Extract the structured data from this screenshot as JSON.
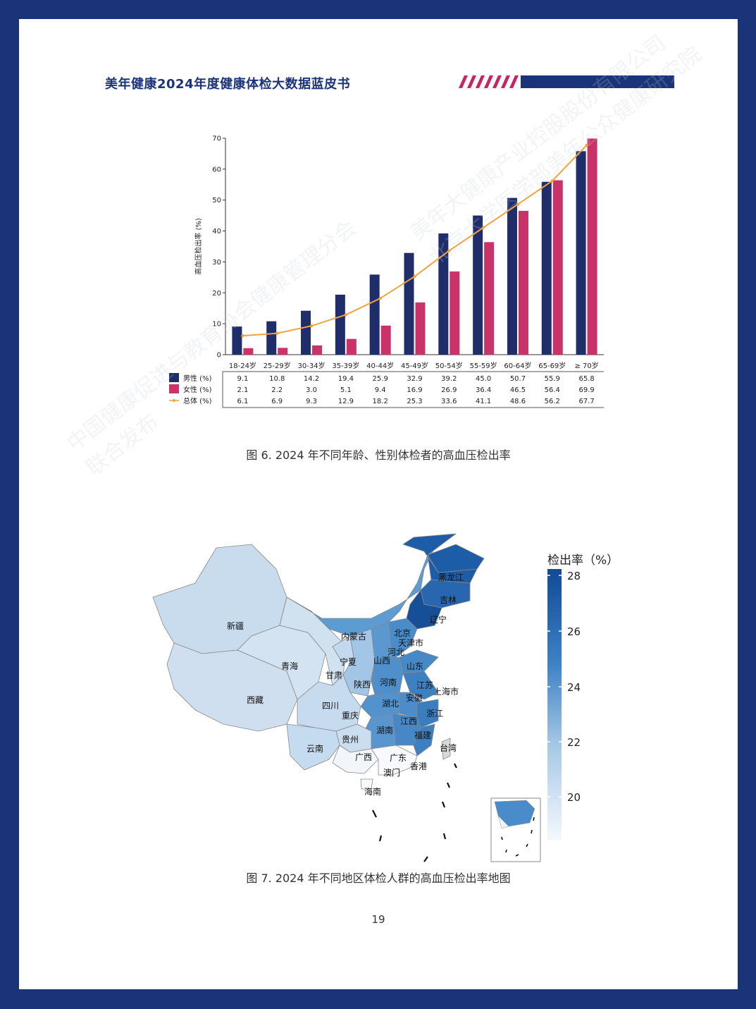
{
  "header": {
    "title": "美年健康2024年度健康体检大数据蓝皮书",
    "accent": "#c6255f",
    "brand": "#1b3378"
  },
  "chart_data": {
    "type": "bar",
    "categories": [
      "18-24岁",
      "25-29岁",
      "30-34岁",
      "35-39岁",
      "40-44岁",
      "45-49岁",
      "50-54岁",
      "55-59岁",
      "60-64岁",
      "65-69岁",
      "≥ 70岁"
    ],
    "series": [
      {
        "name": "男性 (%)",
        "color": "#1f2d6b",
        "values": [
          9.1,
          10.8,
          14.2,
          19.4,
          25.9,
          32.9,
          39.2,
          45.0,
          50.7,
          55.9,
          65.8
        ]
      },
      {
        "name": "女性 (%)",
        "color": "#c9336a",
        "values": [
          2.1,
          2.2,
          3.0,
          5.1,
          9.4,
          16.9,
          26.9,
          36.4,
          46.5,
          56.4,
          69.9
        ]
      },
      {
        "name": "总体 (%)",
        "color": "#f0a33e",
        "type": "line",
        "values": [
          6.1,
          6.9,
          9.3,
          12.9,
          18.2,
          25.3,
          33.6,
          41.1,
          48.6,
          56.2,
          67.7
        ]
      }
    ],
    "ylabel": "高血压检出率 (%)",
    "ylim": [
      0,
      70
    ],
    "yticks": [
      0,
      10,
      20,
      30,
      40,
      50,
      60,
      70
    ]
  },
  "captions": {
    "fig6": "图 6. 2024 年不同年龄、性别体检者的高血压检出率",
    "fig7": "图 7. 2024 年不同地区体检人群的高血压检出率地图"
  },
  "map": {
    "legend_title": "检出率（%）",
    "legend_ticks": [
      "28",
      "26",
      "24",
      "22",
      "20"
    ],
    "regions": [
      "黑龙江",
      "吉林",
      "辽宁",
      "内蒙古",
      "北京",
      "天津市",
      "河北",
      "新疆",
      "青海",
      "宁夏",
      "山西",
      "山东",
      "甘肃",
      "陕西",
      "河南",
      "江苏",
      "上海市",
      "西藏",
      "四川",
      "湖北",
      "安徽",
      "重庆",
      "浙江",
      "江西",
      "湖南",
      "贵州",
      "福建",
      "台湾",
      "云南",
      "广西",
      "广东",
      "香港",
      "澳门",
      "海南"
    ]
  },
  "watermark": {
    "line1": "美年大健康产业控股股份有限公司",
    "line2": "北京大学医学部美年公众健康研究院",
    "line3": "中国健康促进与教育协会健康管理分会",
    "line4": "联合发布"
  },
  "page_number": "19"
}
